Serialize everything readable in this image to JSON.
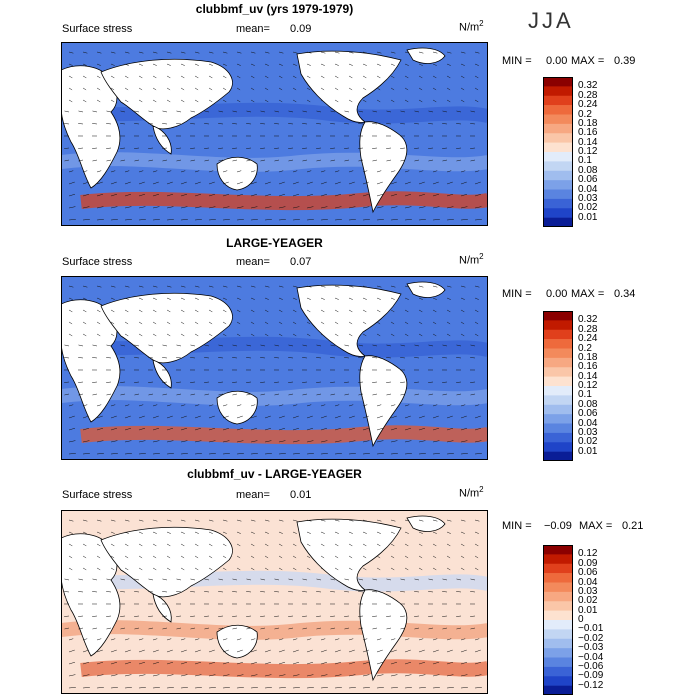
{
  "season": "JJA",
  "panels": [
    {
      "title": "clubbmf_uv (yrs 1979-1979)",
      "variable": "Surface stress",
      "mean_label": "mean=",
      "mean_value": "0.09",
      "units": "N/m",
      "units_exp": "2",
      "min_label": "MIN =",
      "min_value": "0.00",
      "max_label": "MAX =",
      "max_value": "0.39",
      "levels": [
        "0.32",
        "0.28",
        "0.24",
        "0.2",
        "0.18",
        "0.16",
        "0.14",
        "0.12",
        "0.1",
        "0.08",
        "0.06",
        "0.04",
        "0.03",
        "0.02",
        "0.01"
      ],
      "colors": [
        "#8b0000",
        "#c11a00",
        "#e0401c",
        "#ee6a3c",
        "#f38a5c",
        "#f7a882",
        "#fac6a8",
        "#fde2d0",
        "#e2ecfa",
        "#c2d6f3",
        "#a0bdee",
        "#7ca1e8",
        "#5a84e0",
        "#3a63d6",
        "#1f44c8",
        "#0a1d96"
      ]
    },
    {
      "title": "LARGE-YEAGER",
      "variable": "Surface stress",
      "mean_label": "mean=",
      "mean_value": "0.07",
      "units": "N/m",
      "units_exp": "2",
      "min_label": "MIN =",
      "min_value": "0.00",
      "max_label": "MAX =",
      "max_value": "0.34",
      "levels": [
        "0.32",
        "0.28",
        "0.24",
        "0.2",
        "0.18",
        "0.16",
        "0.14",
        "0.12",
        "0.1",
        "0.08",
        "0.06",
        "0.04",
        "0.03",
        "0.02",
        "0.01"
      ],
      "colors": [
        "#8b0000",
        "#c11a00",
        "#e0401c",
        "#ee6a3c",
        "#f38a5c",
        "#f7a882",
        "#fac6a8",
        "#fde2d0",
        "#e2ecfa",
        "#c2d6f3",
        "#a0bdee",
        "#7ca1e8",
        "#5a84e0",
        "#3a63d6",
        "#1f44c8",
        "#0a1d96"
      ]
    },
    {
      "title": "clubbmf_uv - LARGE-YEAGER",
      "variable": "Surface stress",
      "mean_label": "mean=",
      "mean_value": "0.01",
      "units": "N/m",
      "units_exp": "2",
      "min_label": "MIN =",
      "min_value": "−0.09",
      "max_label": "MAX =",
      "max_value": "0.21",
      "levels": [
        "0.12",
        "0.09",
        "0.06",
        "0.04",
        "0.03",
        "0.02",
        "0.01",
        "0",
        "−0.01",
        "−0.02",
        "−0.03",
        "−0.04",
        "−0.06",
        "−0.09",
        "−0.12"
      ],
      "colors": [
        "#8b0000",
        "#c11a00",
        "#e0401c",
        "#ee6a3c",
        "#f38a5c",
        "#f7a882",
        "#fac6a8",
        "#fde2d0",
        "#e2ecfa",
        "#c2d6f3",
        "#a0bdee",
        "#7ca1e8",
        "#5a84e0",
        "#3a63d6",
        "#1f44c8",
        "#0a1d96"
      ]
    }
  ]
}
